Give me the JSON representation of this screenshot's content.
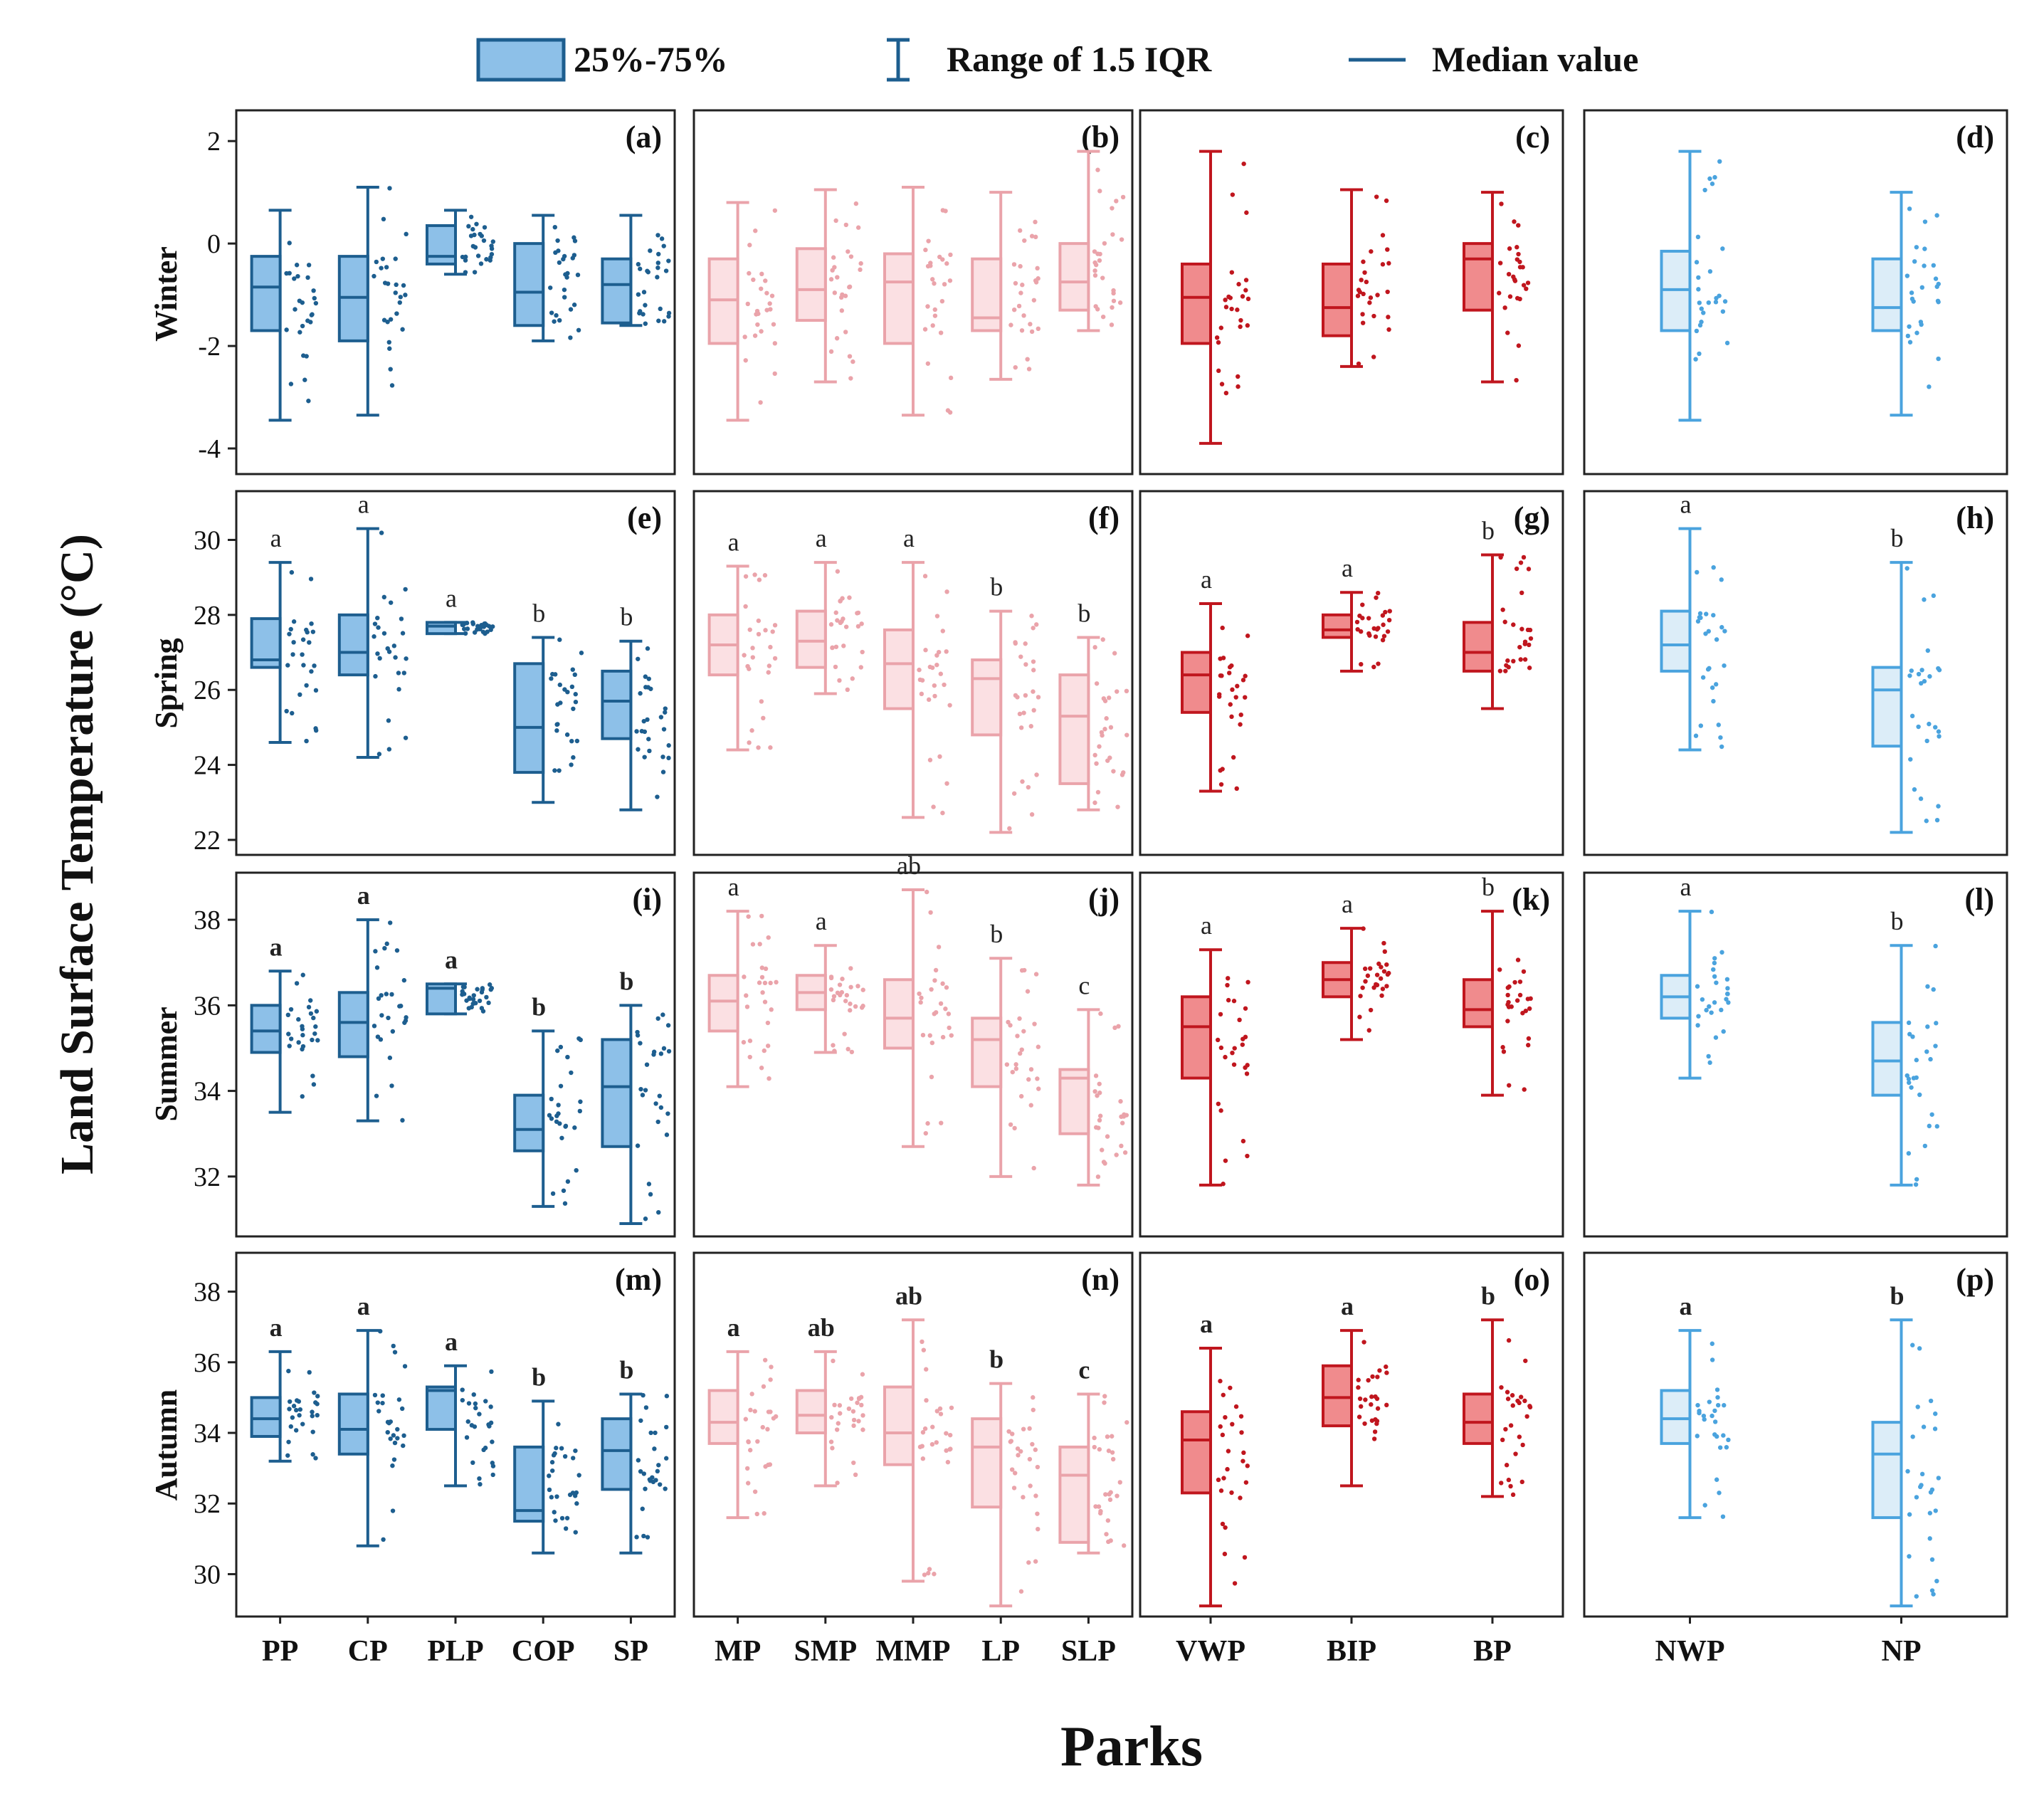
{
  "chart_data": {
    "type": "box",
    "xlabel": "Parks",
    "ylabel": "Land Surface Temperature (°C)",
    "legend": {
      "placement": "top",
      "items": [
        {
          "key": "box",
          "label": "25%-75%"
        },
        {
          "key": "whisker",
          "label": "Range of 1.5 IQR"
        },
        {
          "key": "median",
          "label": "Median value"
        }
      ]
    },
    "groups": [
      {
        "name": "group1",
        "colors": {
          "fill": "#8dc0e8",
          "stroke": "#1d5e8f",
          "dots": "#1d5e8f"
        },
        "categories": [
          "PP",
          "CP",
          "PLP",
          "COP",
          "SP"
        ]
      },
      {
        "name": "group2",
        "colors": {
          "fill": "#fbe0e3",
          "stroke": "#eaa3aa",
          "dots": "#eaa3aa"
        },
        "categories": [
          "MP",
          "SMP",
          "MMP",
          "LP",
          "SLP"
        ]
      },
      {
        "name": "group3",
        "colors": {
          "fill": "#f08b8d",
          "stroke": "#c0161e",
          "dots": "#c0161e"
        },
        "categories": [
          "VWP",
          "BIP",
          "BP"
        ]
      },
      {
        "name": "group4",
        "colors": {
          "fill": "#dcedf8",
          "stroke": "#4aa3de",
          "dots": "#4aa3de"
        },
        "categories": [
          "NWP",
          "NP"
        ]
      }
    ],
    "seasons": [
      {
        "name": "Winter",
        "ylim": [
          -4.5,
          2.6
        ],
        "yticks": [
          -4,
          -2,
          0,
          2
        ],
        "panels": [
          {
            "label": "(a)",
            "group": 0,
            "bold_letters": false,
            "letters": [],
            "boxes": [
              {
                "min": -3.45,
                "q1": -1.7,
                "median": -0.85,
                "q3": -0.25,
                "max": 0.65
              },
              {
                "min": -3.35,
                "q1": -1.9,
                "median": -1.05,
                "q3": -0.25,
                "max": 1.1
              },
              {
                "min": -0.6,
                "q1": -0.4,
                "median": -0.25,
                "q3": 0.35,
                "max": 0.65
              },
              {
                "min": -1.9,
                "q1": -1.6,
                "median": -0.95,
                "q3": 0.0,
                "max": 0.55
              },
              {
                "min": -1.6,
                "q1": -1.55,
                "median": -0.8,
                "q3": -0.3,
                "max": 0.55
              }
            ]
          },
          {
            "label": "(b)",
            "group": 1,
            "bold_letters": false,
            "letters": [],
            "boxes": [
              {
                "min": -3.45,
                "q1": -1.95,
                "median": -1.1,
                "q3": -0.3,
                "max": 0.8
              },
              {
                "min": -2.7,
                "q1": -1.5,
                "median": -0.9,
                "q3": -0.1,
                "max": 1.05
              },
              {
                "min": -3.35,
                "q1": -1.95,
                "median": -0.75,
                "q3": -0.2,
                "max": 1.1
              },
              {
                "min": -2.65,
                "q1": -1.7,
                "median": -1.45,
                "q3": -0.3,
                "max": 1.0
              },
              {
                "min": -1.7,
                "q1": -1.3,
                "median": -0.75,
                "q3": 0.0,
                "max": 1.8
              }
            ]
          },
          {
            "label": "(c)",
            "group": 2,
            "bold_letters": false,
            "letters": [],
            "boxes": [
              {
                "min": -3.9,
                "q1": -1.95,
                "median": -1.05,
                "q3": -0.4,
                "max": 1.8
              },
              {
                "min": -2.4,
                "q1": -1.8,
                "median": -1.25,
                "q3": -0.4,
                "max": 1.05
              },
              {
                "min": -2.7,
                "q1": -1.3,
                "median": -0.3,
                "q3": 0.0,
                "max": 1.0
              }
            ]
          },
          {
            "label": "(d)",
            "group": 3,
            "bold_letters": false,
            "letters": [],
            "boxes": [
              {
                "min": -3.45,
                "q1": -1.7,
                "median": -0.9,
                "q3": -0.15,
                "max": 1.8
              },
              {
                "min": -3.35,
                "q1": -1.7,
                "median": -1.25,
                "q3": -0.3,
                "max": 1.0
              }
            ]
          }
        ]
      },
      {
        "name": "Spring",
        "ylim": [
          21.6,
          31.3
        ],
        "yticks": [
          22,
          24,
          26,
          28,
          30
        ],
        "panels": [
          {
            "label": "(e)",
            "group": 0,
            "bold_letters": false,
            "letters": [
              "a",
              "a",
              "a",
              "b",
              "b"
            ],
            "boxes": [
              {
                "min": 24.6,
                "q1": 26.6,
                "median": 26.8,
                "q3": 27.9,
                "max": 29.4
              },
              {
                "min": 24.2,
                "q1": 26.4,
                "median": 27.0,
                "q3": 28.0,
                "max": 30.3
              },
              {
                "min": 27.5,
                "q1": 27.5,
                "median": 27.7,
                "q3": 27.8,
                "max": 27.8
              },
              {
                "min": 23.0,
                "q1": 23.8,
                "median": 25.0,
                "q3": 26.7,
                "max": 27.4
              },
              {
                "min": 22.8,
                "q1": 24.7,
                "median": 25.7,
                "q3": 26.5,
                "max": 27.3
              }
            ]
          },
          {
            "label": "(f)",
            "group": 1,
            "bold_letters": false,
            "letters": [
              "a",
              "a",
              "a",
              "b",
              "b"
            ],
            "boxes": [
              {
                "min": 24.4,
                "q1": 26.4,
                "median": 27.2,
                "q3": 28.0,
                "max": 29.3
              },
              {
                "min": 25.9,
                "q1": 26.6,
                "median": 27.3,
                "q3": 28.1,
                "max": 29.4
              },
              {
                "min": 22.6,
                "q1": 25.5,
                "median": 26.7,
                "q3": 27.6,
                "max": 29.4
              },
              {
                "min": 22.2,
                "q1": 24.8,
                "median": 26.3,
                "q3": 26.8,
                "max": 28.1
              },
              {
                "min": 22.8,
                "q1": 23.5,
                "median": 25.3,
                "q3": 26.4,
                "max": 27.4
              }
            ]
          },
          {
            "label": "(g)",
            "group": 2,
            "bold_letters": false,
            "letters": [
              "a",
              "a",
              "b"
            ],
            "boxes": [
              {
                "min": 23.3,
                "q1": 25.4,
                "median": 26.4,
                "q3": 27.0,
                "max": 28.3
              },
              {
                "min": 26.5,
                "q1": 27.4,
                "median": 27.6,
                "q3": 28.0,
                "max": 28.6
              },
              {
                "min": 25.5,
                "q1": 26.5,
                "median": 27.0,
                "q3": 27.8,
                "max": 29.6
              }
            ]
          },
          {
            "label": "(h)",
            "group": 3,
            "bold_letters": false,
            "letters": [
              "a",
              "b"
            ],
            "boxes": [
              {
                "min": 24.4,
                "q1": 26.5,
                "median": 27.2,
                "q3": 28.1,
                "max": 30.3
              },
              {
                "min": 22.2,
                "q1": 24.5,
                "median": 26.0,
                "q3": 26.6,
                "max": 29.4
              }
            ]
          }
        ]
      },
      {
        "name": "Summer",
        "ylim": [
          30.6,
          39.1
        ],
        "yticks": [
          32,
          34,
          36,
          38
        ],
        "panels": [
          {
            "label": "(i)",
            "group": 0,
            "bold_letters": true,
            "letters": [
              "a",
              "a",
              "a",
              "b",
              "b"
            ],
            "boxes": [
              {
                "min": 33.5,
                "q1": 34.9,
                "median": 35.4,
                "q3": 36.0,
                "max": 36.8
              },
              {
                "min": 33.3,
                "q1": 34.8,
                "median": 35.6,
                "q3": 36.3,
                "max": 38.0
              },
              {
                "min": 35.8,
                "q1": 35.8,
                "median": 36.4,
                "q3": 36.5,
                "max": 36.5
              },
              {
                "min": 31.3,
                "q1": 32.6,
                "median": 33.1,
                "q3": 33.9,
                "max": 35.4
              },
              {
                "min": 30.9,
                "q1": 32.7,
                "median": 34.1,
                "q3": 35.2,
                "max": 36.0
              }
            ]
          },
          {
            "label": "(j)",
            "group": 1,
            "bold_letters": false,
            "letters": [
              "a",
              "a",
              "ab",
              "b",
              "c"
            ],
            "boxes": [
              {
                "min": 34.1,
                "q1": 35.4,
                "median": 36.1,
                "q3": 36.7,
                "max": 38.2
              },
              {
                "min": 34.9,
                "q1": 35.9,
                "median": 36.3,
                "q3": 36.7,
                "max": 37.4
              },
              {
                "min": 32.7,
                "q1": 35.0,
                "median": 35.7,
                "q3": 36.6,
                "max": 38.7
              },
              {
                "min": 32.0,
                "q1": 34.1,
                "median": 35.2,
                "q3": 35.7,
                "max": 37.1
              },
              {
                "min": 31.8,
                "q1": 33.0,
                "median": 34.3,
                "q3": 34.5,
                "max": 35.9
              }
            ]
          },
          {
            "label": "(k)",
            "group": 2,
            "bold_letters": false,
            "letters": [
              "a",
              "a",
              "b"
            ],
            "boxes": [
              {
                "min": 31.8,
                "q1": 34.3,
                "median": 35.5,
                "q3": 36.2,
                "max": 37.3
              },
              {
                "min": 35.2,
                "q1": 36.2,
                "median": 36.6,
                "q3": 37.0,
                "max": 37.8
              },
              {
                "min": 33.9,
                "q1": 35.5,
                "median": 35.9,
                "q3": 36.6,
                "max": 38.2
              }
            ]
          },
          {
            "label": "(l)",
            "group": 3,
            "bold_letters": false,
            "letters": [
              "a",
              "b"
            ],
            "boxes": [
              {
                "min": 34.3,
                "q1": 35.7,
                "median": 36.2,
                "q3": 36.7,
                "max": 38.2
              },
              {
                "min": 31.8,
                "q1": 33.9,
                "median": 34.7,
                "q3": 35.6,
                "max": 37.4
              }
            ]
          }
        ]
      },
      {
        "name": "Autumn",
        "ylim": [
          28.8,
          39.1
        ],
        "yticks": [
          30,
          32,
          34,
          36,
          38
        ],
        "panels": [
          {
            "label": "(m)",
            "group": 0,
            "bold_letters": true,
            "letters": [
              "a",
              "a",
              "a",
              "b",
              "b"
            ],
            "boxes": [
              {
                "min": 33.2,
                "q1": 33.9,
                "median": 34.4,
                "q3": 35.0,
                "max": 36.3
              },
              {
                "min": 30.8,
                "q1": 33.4,
                "median": 34.1,
                "q3": 35.1,
                "max": 36.9
              },
              {
                "min": 32.5,
                "q1": 34.1,
                "median": 35.2,
                "q3": 35.3,
                "max": 35.9
              },
              {
                "min": 30.6,
                "q1": 31.5,
                "median": 31.8,
                "q3": 33.6,
                "max": 34.9
              },
              {
                "min": 30.6,
                "q1": 32.4,
                "median": 33.5,
                "q3": 34.4,
                "max": 35.1
              }
            ]
          },
          {
            "label": "(n)",
            "group": 1,
            "bold_letters": true,
            "letters": [
              "a",
              "ab",
              "ab",
              "b",
              "c"
            ],
            "boxes": [
              {
                "min": 31.6,
                "q1": 33.7,
                "median": 34.3,
                "q3": 35.2,
                "max": 36.3
              },
              {
                "min": 32.5,
                "q1": 34.0,
                "median": 34.5,
                "q3": 35.2,
                "max": 36.3
              },
              {
                "min": 29.8,
                "q1": 33.1,
                "median": 34.0,
                "q3": 35.3,
                "max": 37.2
              },
              {
                "min": 29.1,
                "q1": 31.9,
                "median": 33.6,
                "q3": 34.4,
                "max": 35.4
              },
              {
                "min": 30.6,
                "q1": 30.9,
                "median": 32.8,
                "q3": 33.6,
                "max": 35.1
              }
            ]
          },
          {
            "label": "(o)",
            "group": 2,
            "bold_letters": true,
            "letters": [
              "a",
              "a",
              "b"
            ],
            "boxes": [
              {
                "min": 29.1,
                "q1": 32.3,
                "median": 33.8,
                "q3": 34.6,
                "max": 36.4
              },
              {
                "min": 32.5,
                "q1": 34.2,
                "median": 35.0,
                "q3": 35.9,
                "max": 36.9
              },
              {
                "min": 32.2,
                "q1": 33.7,
                "median": 34.3,
                "q3": 35.1,
                "max": 37.2
              }
            ]
          },
          {
            "label": "(p)",
            "group": 3,
            "bold_letters": true,
            "letters": [
              "a",
              "b"
            ],
            "boxes": [
              {
                "min": 31.6,
                "q1": 33.7,
                "median": 34.4,
                "q3": 35.2,
                "max": 36.9
              },
              {
                "min": 29.1,
                "q1": 31.6,
                "median": 33.4,
                "q3": 34.3,
                "max": 37.2
              }
            ]
          }
        ]
      }
    ]
  }
}
